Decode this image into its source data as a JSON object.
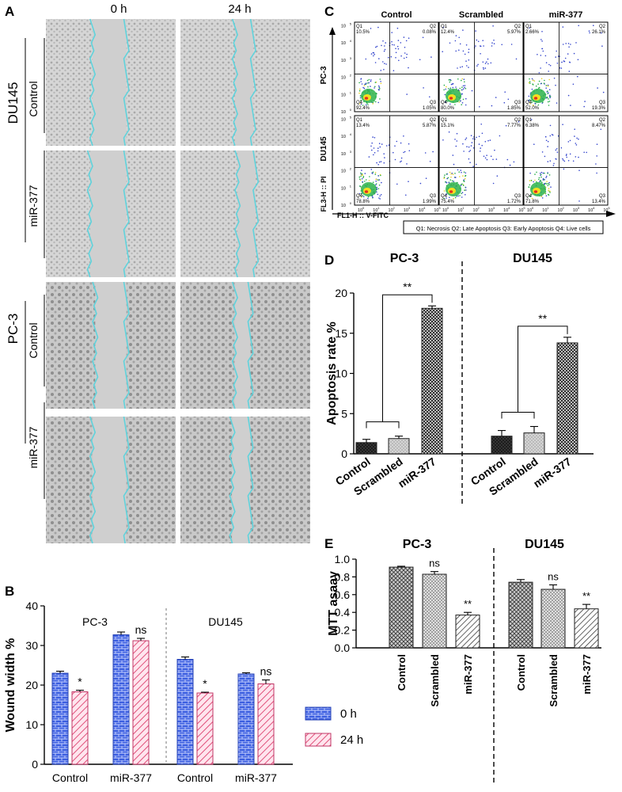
{
  "panel_labels": {
    "a": "A",
    "b": "B",
    "c": "C",
    "d": "D",
    "e": "E"
  },
  "panelA": {
    "col_headers": [
      "0 h",
      "24 h"
    ],
    "groups": [
      "DU145",
      "PC-3"
    ],
    "rows": [
      "Control",
      "miR-377",
      "Control",
      "miR-377"
    ]
  },
  "panelC": {
    "col_headers": [
      "Control",
      "Scrambled",
      "miR-377"
    ],
    "row_labels": [
      "PC-3",
      "DU145"
    ],
    "y_axis_label": "FL3-H :: PI",
    "x_axis_label": "FL1-H :: V-FITC",
    "legend": "Q1: Necrosis   Q2: Late Apoptosis   Q3: Early Apoptosis   Q4: Live cells",
    "quadrant_names": [
      "Q1",
      "Q2",
      "Q3",
      "Q4"
    ],
    "tick_labels": [
      "10",
      "10",
      "10",
      "10",
      "10",
      "10"
    ],
    "tick_exponents": [
      "0",
      "1",
      "2",
      "3",
      "4",
      "5"
    ],
    "plots": [
      {
        "row": "PC-3",
        "col": "Control",
        "q1": "10.5%",
        "q2": "0.08%",
        "q3": "1.05%",
        "q4": "92.4%"
      },
      {
        "row": "PC-3",
        "col": "Scrambled",
        "q1": "12.4%",
        "q2": "5.97%",
        "q3": "1.85%",
        "q4": "80.0%"
      },
      {
        "row": "PC-3",
        "col": "miR-377",
        "q1": "2.66%",
        "q2": "26.1%",
        "q3": "19.3%",
        "q4": "52.0%"
      },
      {
        "row": "DU145",
        "col": "Control",
        "q1": "13.4%",
        "q2": "5.87%",
        "q3": "1.99%",
        "q4": "78.8%"
      },
      {
        "row": "DU145",
        "col": "Scrambled",
        "q1": "15.1%",
        "q2": "7.77%",
        "q3": "1.72%",
        "q4": "75.4%"
      },
      {
        "row": "DU145",
        "col": "miR-377",
        "q1": "6.38%",
        "q2": "8.47%",
        "q3": "13.4%",
        "q4": "71.8%"
      }
    ]
  },
  "chart_data": [
    {
      "id": "B",
      "type": "bar",
      "title": "",
      "ylabel": "Wound width %",
      "xlabel": "",
      "ylim": [
        0,
        40
      ],
      "yticks": [
        "0",
        "10",
        "20",
        "30",
        "40"
      ],
      "groups": [
        "PC-3",
        "DU145"
      ],
      "categories": [
        "Control",
        "miR-377",
        "Control",
        "miR-377"
      ],
      "series": [
        {
          "name": "0 h",
          "values": [
            23.0,
            32.7,
            26.5,
            22.8
          ],
          "errors": [
            0.5,
            0.7,
            0.6,
            0.3
          ],
          "color": "#4466dd",
          "pattern": "brick"
        },
        {
          "name": "24 h",
          "values": [
            18.3,
            31.2,
            18.0,
            20.3
          ],
          "errors": [
            0.4,
            0.6,
            0.2,
            1.0
          ],
          "color": "#e0507a",
          "pattern": "hatch"
        }
      ],
      "annotations": [
        "*",
        "ns",
        "*",
        "ns"
      ],
      "legend_position": "bottom-right"
    },
    {
      "id": "D",
      "type": "bar",
      "title": "",
      "ylabel": "Apoptosis rate %",
      "ylim": [
        0,
        20
      ],
      "yticks": [
        "0",
        "5",
        "10",
        "15",
        "20"
      ],
      "groups": [
        "PC-3",
        "DU145"
      ],
      "categories": [
        "Control",
        "Scrambled",
        "miR-377"
      ],
      "series": [
        {
          "name": "PC-3",
          "values": [
            1.4,
            1.9,
            18.1
          ],
          "errors": [
            0.4,
            0.3,
            0.3
          ]
        },
        {
          "name": "DU145",
          "values": [
            2.2,
            2.6,
            13.8
          ],
          "errors": [
            0.7,
            0.8,
            0.7
          ]
        }
      ],
      "annotations": [
        "**",
        "**"
      ]
    },
    {
      "id": "E",
      "type": "bar",
      "title": "",
      "ylabel": "MTT asaay",
      "ylim": [
        0,
        1.0
      ],
      "yticks": [
        "0.0",
        "0.2",
        "0.4",
        "0.6",
        "0.8",
        "1.0"
      ],
      "groups": [
        "PC-3",
        "DU145"
      ],
      "categories": [
        "Control",
        "Scrambled",
        "miR-377"
      ],
      "series": [
        {
          "name": "PC-3",
          "values": [
            0.91,
            0.83,
            0.37
          ],
          "errors": [
            0.01,
            0.03,
            0.03
          ]
        },
        {
          "name": "DU145",
          "values": [
            0.74,
            0.66,
            0.44
          ],
          "errors": [
            0.03,
            0.05,
            0.05
          ]
        }
      ],
      "annotations": [
        "ns",
        "**",
        "ns",
        "**"
      ]
    }
  ]
}
